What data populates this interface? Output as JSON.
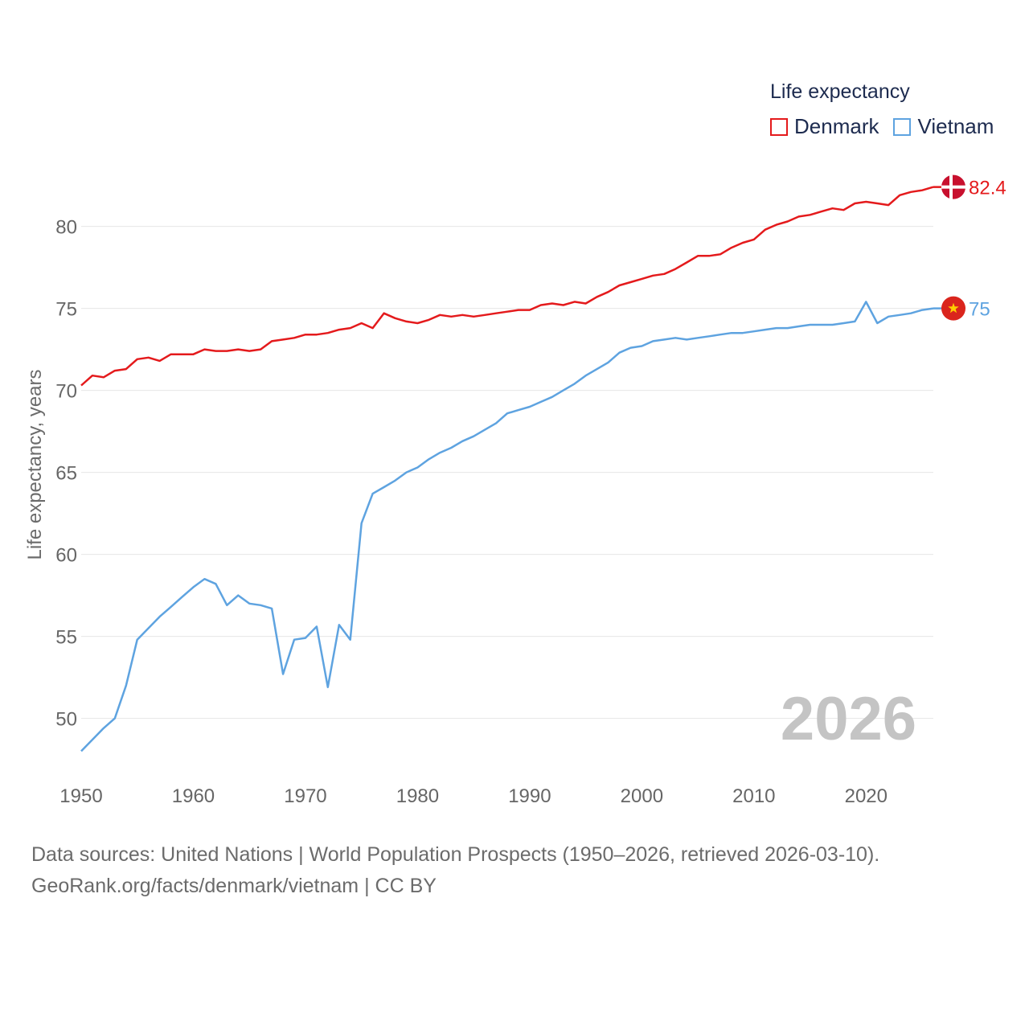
{
  "chart_data": {
    "type": "line",
    "title": "Life expectancy",
    "xlabel": "",
    "ylabel": "Life expectancy, years",
    "xlim": [
      1950,
      2026
    ],
    "ylim": [
      46.5,
      84
    ],
    "x_ticks": [
      1950,
      1960,
      1970,
      1980,
      1990,
      2000,
      2010,
      2020
    ],
    "y_ticks": [
      50,
      55,
      60,
      65,
      70,
      75,
      80
    ],
    "grid": true,
    "year_watermark": "2026",
    "x": [
      1950,
      1951,
      1952,
      1953,
      1954,
      1955,
      1956,
      1957,
      1958,
      1959,
      1960,
      1961,
      1962,
      1963,
      1964,
      1965,
      1966,
      1967,
      1968,
      1969,
      1970,
      1971,
      1972,
      1973,
      1974,
      1975,
      1976,
      1977,
      1978,
      1979,
      1980,
      1981,
      1982,
      1983,
      1984,
      1985,
      1986,
      1987,
      1988,
      1989,
      1990,
      1991,
      1992,
      1993,
      1994,
      1995,
      1996,
      1997,
      1998,
      1999,
      2000,
      2001,
      2002,
      2003,
      2004,
      2005,
      2006,
      2007,
      2008,
      2009,
      2010,
      2011,
      2012,
      2013,
      2014,
      2015,
      2016,
      2017,
      2018,
      2019,
      2020,
      2021,
      2022,
      2023,
      2024,
      2025,
      2026
    ],
    "series": [
      {
        "name": "Denmark",
        "color": "#e41a1c",
        "end_label": "82.4",
        "flag": "denmark-flag",
        "values": [
          70.3,
          70.9,
          70.8,
          71.2,
          71.3,
          71.9,
          72.0,
          71.8,
          72.2,
          72.2,
          72.2,
          72.5,
          72.4,
          72.4,
          72.5,
          72.4,
          72.5,
          73.0,
          73.1,
          73.2,
          73.4,
          73.4,
          73.5,
          73.7,
          73.8,
          74.1,
          73.8,
          74.7,
          74.4,
          74.2,
          74.1,
          74.3,
          74.6,
          74.5,
          74.6,
          74.5,
          74.6,
          74.7,
          74.8,
          74.9,
          74.9,
          75.2,
          75.3,
          75.2,
          75.4,
          75.3,
          75.7,
          76.0,
          76.4,
          76.6,
          76.8,
          77.0,
          77.1,
          77.4,
          77.8,
          78.2,
          78.2,
          78.3,
          78.7,
          79.0,
          79.2,
          79.8,
          80.1,
          80.3,
          80.6,
          80.7,
          80.9,
          81.1,
          81.0,
          81.4,
          81.5,
          81.4,
          81.3,
          81.9,
          82.1,
          82.2,
          82.4
        ]
      },
      {
        "name": "Vietnam",
        "color": "#5ea3e0",
        "end_label": "75",
        "flag": "vietnam-flag",
        "values": [
          48.0,
          48.7,
          49.4,
          50.0,
          52.0,
          54.8,
          55.5,
          56.2,
          56.8,
          57.4,
          58.0,
          58.5,
          58.2,
          56.9,
          57.5,
          57.0,
          56.9,
          56.7,
          52.7,
          54.8,
          54.9,
          55.6,
          51.9,
          55.7,
          54.8,
          61.9,
          63.7,
          64.1,
          64.5,
          65.0,
          65.3,
          65.8,
          66.2,
          66.5,
          66.9,
          67.2,
          67.6,
          68.0,
          68.6,
          68.8,
          69.0,
          69.3,
          69.6,
          70.0,
          70.4,
          70.9,
          71.3,
          71.7,
          72.3,
          72.6,
          72.7,
          73.0,
          73.1,
          73.2,
          73.1,
          73.2,
          73.3,
          73.4,
          73.5,
          73.5,
          73.6,
          73.7,
          73.8,
          73.8,
          73.9,
          74.0,
          74.0,
          74.0,
          74.1,
          74.2,
          75.4,
          74.1,
          74.5,
          74.6,
          74.7,
          74.9,
          75.0
        ]
      }
    ]
  },
  "legend": {
    "title": "Life expectancy",
    "items": [
      "Denmark",
      "Vietnam"
    ]
  },
  "source": {
    "line1": "Data sources: United Nations | World Population Prospects (1950–2026, retrieved 2026-03-10).",
    "line2": "GeoRank.org/facts/denmark/vietnam | CC BY"
  }
}
